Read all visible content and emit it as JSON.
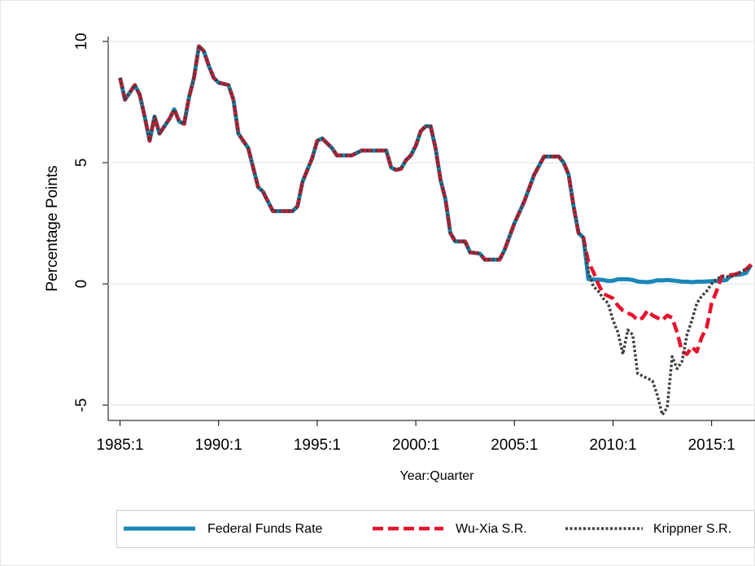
{
  "chart_data": {
    "type": "line",
    "y_label": "Percentage Points",
    "x_label": "Year:Quarter",
    "x": [
      1985,
      1985.25,
      1985.5,
      1985.75,
      1986,
      1986.25,
      1986.5,
      1986.75,
      1987,
      1987.5,
      1987.75,
      1988,
      1988.25,
      1988.5,
      1988.75,
      1989,
      1989.25,
      1989.5,
      1989.75,
      1990,
      1990.5,
      1990.75,
      1991,
      1991.5,
      1991.75,
      1992,
      1992.25,
      1992.75,
      1993.75,
      1994,
      1994.25,
      1994.75,
      1995,
      1995.25,
      1995.75,
      1996,
      1996.75,
      1997.25,
      1998.5,
      1998.75,
      1999,
      1999.25,
      1999.5,
      1999.75,
      2000,
      2000.25,
      2000.5,
      2000.75,
      2001,
      2001.25,
      2001.5,
      2001.75,
      2002,
      2002.5,
      2002.75,
      2003.25,
      2003.5,
      2004.25,
      2004.5,
      2005,
      2005.5,
      2006,
      2006.5,
      2007.25,
      2007.5,
      2007.75,
      2008,
      2008.25,
      2008.5,
      2008.75,
      2009,
      2009.25,
      2009.5,
      2009.75,
      2010,
      2010.25,
      2010.5,
      2010.75,
      2011,
      2011.25,
      2011.5,
      2011.75,
      2012,
      2012.25,
      2012.5,
      2012.75,
      2013,
      2013.25,
      2013.5,
      2013.75,
      2014,
      2014.25,
      2014.5,
      2014.75,
      2015,
      2015.25,
      2015.5,
      2015.75,
      2016,
      2016.25,
      2016.5,
      2016.75,
      2017
    ],
    "series": [
      {
        "name": "Federal Funds Rate",
        "color": "#1a87b8",
        "style": "solid",
        "values": [
          8.5,
          7.6,
          7.9,
          8.2,
          7.8,
          6.9,
          5.9,
          6.9,
          6.2,
          6.8,
          7.2,
          6.7,
          6.6,
          7.7,
          8.5,
          9.8,
          9.6,
          9.0,
          8.5,
          8.3,
          8.2,
          7.6,
          6.2,
          5.6,
          4.8,
          4.0,
          3.8,
          3.0,
          3.0,
          3.2,
          4.2,
          5.2,
          5.9,
          6.0,
          5.6,
          5.3,
          5.3,
          5.5,
          5.5,
          4.8,
          4.7,
          4.75,
          5.1,
          5.3,
          5.7,
          6.3,
          6.5,
          6.5,
          5.6,
          4.3,
          3.5,
          2.1,
          1.75,
          1.75,
          1.3,
          1.25,
          1.0,
          1.0,
          1.4,
          2.5,
          3.4,
          4.5,
          5.25,
          5.25,
          5.0,
          4.5,
          3.2,
          2.1,
          1.9,
          0.2,
          0.18,
          0.18,
          0.16,
          0.12,
          0.13,
          0.19,
          0.19,
          0.19,
          0.16,
          0.1,
          0.08,
          0.07,
          0.1,
          0.15,
          0.14,
          0.16,
          0.14,
          0.12,
          0.09,
          0.09,
          0.07,
          0.09,
          0.09,
          0.1,
          0.11,
          0.12,
          0.13,
          0.16,
          0.36,
          0.37,
          0.39,
          0.45,
          0.8
        ]
      },
      {
        "name": "Wu-Xia S.R.",
        "color": "#e8112d",
        "style": "dashed",
        "values": [
          8.5,
          7.6,
          7.9,
          8.2,
          7.8,
          6.9,
          5.9,
          6.9,
          6.2,
          6.8,
          7.2,
          6.7,
          6.6,
          7.7,
          8.5,
          9.8,
          9.6,
          9.0,
          8.5,
          8.3,
          8.2,
          7.6,
          6.2,
          5.6,
          4.8,
          4.0,
          3.8,
          3.0,
          3.0,
          3.2,
          4.2,
          5.2,
          5.9,
          6.0,
          5.6,
          5.3,
          5.3,
          5.5,
          5.5,
          4.8,
          4.7,
          4.75,
          5.1,
          5.3,
          5.7,
          6.3,
          6.5,
          6.5,
          5.6,
          4.3,
          3.5,
          2.1,
          1.75,
          1.75,
          1.3,
          1.25,
          1.0,
          1.0,
          1.4,
          2.5,
          3.4,
          4.5,
          5.25,
          5.25,
          5.0,
          4.5,
          3.2,
          2.1,
          1.9,
          0.9,
          0.5,
          0.0,
          -0.4,
          -0.5,
          -0.6,
          -0.9,
          -1.1,
          -1.2,
          -1.3,
          -1.5,
          -1.4,
          -1.1,
          -1.3,
          -1.4,
          -1.5,
          -1.3,
          -1.4,
          -2.0,
          -2.8,
          -2.9,
          -2.6,
          -2.8,
          -2.2,
          -1.8,
          -0.8,
          -0.3,
          0.3,
          0.35,
          0.37,
          0.4,
          0.5,
          0.6,
          0.8
        ]
      },
      {
        "name": "Krippner S.R.",
        "color": "#404040",
        "style": "dotted",
        "values": [
          8.5,
          7.6,
          7.9,
          8.2,
          7.8,
          6.9,
          5.9,
          6.9,
          6.2,
          6.8,
          7.2,
          6.7,
          6.6,
          7.7,
          8.5,
          9.8,
          9.6,
          9.0,
          8.5,
          8.3,
          8.2,
          7.6,
          6.2,
          5.6,
          4.8,
          4.0,
          3.8,
          3.0,
          3.0,
          3.2,
          4.2,
          5.2,
          5.9,
          6.0,
          5.6,
          5.3,
          5.3,
          5.5,
          5.5,
          4.8,
          4.7,
          4.75,
          5.1,
          5.3,
          5.7,
          6.3,
          6.5,
          6.5,
          5.6,
          4.3,
          3.5,
          2.1,
          1.75,
          1.75,
          1.3,
          1.25,
          1.0,
          1.0,
          1.4,
          2.5,
          3.4,
          4.5,
          5.25,
          5.25,
          5.0,
          4.5,
          3.2,
          2.1,
          1.9,
          0.5,
          -0.1,
          -0.3,
          -0.6,
          -0.8,
          -1.5,
          -2.0,
          -2.9,
          -1.9,
          -2.1,
          -3.7,
          -3.8,
          -3.9,
          -4.0,
          -4.6,
          -5.4,
          -5.1,
          -3.0,
          -3.5,
          -3.2,
          -2.1,
          -1.5,
          -0.8,
          -0.5,
          -0.3,
          0.0,
          0.2,
          0.3,
          0.3,
          0.3,
          0.4,
          0.5,
          0.6,
          0.7
        ]
      }
    ],
    "xlim": [
      1984.4,
      2017.2
    ],
    "xticks": [
      {
        "value": 1985,
        "label": "1985:1"
      },
      {
        "value": 1990,
        "label": "1990:1"
      },
      {
        "value": 1995,
        "label": "1995:1"
      },
      {
        "value": 2000,
        "label": "2000:1"
      },
      {
        "value": 2005,
        "label": "2005:1"
      },
      {
        "value": 2010,
        "label": "2010:1"
      },
      {
        "value": 2015,
        "label": "2015:1"
      }
    ],
    "ylim": [
      -5.6,
      10.2
    ],
    "yticks": [
      -5,
      0,
      5,
      10
    ],
    "grid": true,
    "legend": "bottom"
  }
}
